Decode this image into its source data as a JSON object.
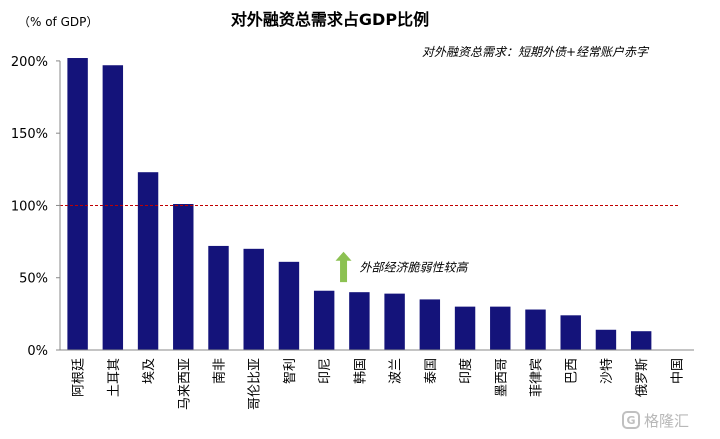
{
  "chart_data": {
    "type": "bar",
    "title": "对外融资总需求占GDP比例",
    "subtitle": "对外融资总需求：短期外债+经常账户赤字",
    "ylabel": "（% of GDP）",
    "categories": [
      "阿根廷",
      "土耳其",
      "埃及",
      "马来西亚",
      "南非",
      "哥伦比亚",
      "智利",
      "印尼",
      "韩国",
      "波兰",
      "泰国",
      "印度",
      "墨西哥",
      "菲律宾",
      "巴西",
      "沙特",
      "俄罗斯",
      "中国"
    ],
    "values": [
      202,
      197,
      123,
      101,
      72,
      70,
      61,
      41,
      40,
      39,
      35,
      30,
      30,
      28,
      24,
      14,
      13,
      0
    ],
    "ylim": [
      0,
      220
    ],
    "yticks": [
      0,
      50,
      100,
      150,
      200
    ],
    "ytick_labels": [
      "0%",
      "50%",
      "100%",
      "150%",
      "200%"
    ],
    "reference_line": {
      "value": 100,
      "color": "#c00000",
      "style": "dashed"
    },
    "annotation": {
      "text": "外部经济脆弱性较高",
      "arrow_color": "#8cc152",
      "near_category": "印尼"
    },
    "bar_color": "#14137a",
    "grid": false,
    "legend": "none"
  },
  "watermark": {
    "text": "格隆汇"
  }
}
